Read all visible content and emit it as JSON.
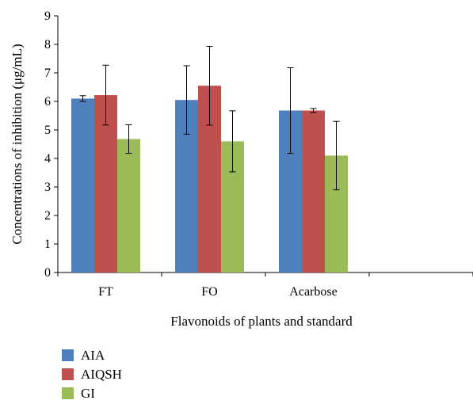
{
  "chart_data": {
    "type": "bar",
    "title": "",
    "xlabel": "Flavonoids of plants and standard",
    "ylabel": "Concentrations of inhibition (μg/mL)",
    "ylim": [
      0,
      9
    ],
    "yticks": [
      0,
      1,
      2,
      3,
      4,
      5,
      6,
      7,
      8,
      9
    ],
    "categories": [
      "FT",
      "FO",
      "Acarbose",
      ""
    ],
    "series": [
      {
        "name": "AIA",
        "color": "#4f7fbc",
        "values": [
          6.1,
          6.05,
          5.68,
          null
        ],
        "errors": [
          0.1,
          1.2,
          1.5,
          null
        ]
      },
      {
        "name": "AIQSH",
        "color": "#c0504d",
        "values": [
          6.22,
          6.55,
          5.68,
          null
        ],
        "errors": [
          1.05,
          1.38,
          0.07,
          null
        ]
      },
      {
        "name": "GI",
        "color": "#9bbb59",
        "values": [
          4.68,
          4.6,
          4.1,
          null
        ],
        "errors": [
          0.5,
          1.07,
          1.2,
          null
        ]
      }
    ],
    "grid": false,
    "legend_position": "bottom-left"
  }
}
